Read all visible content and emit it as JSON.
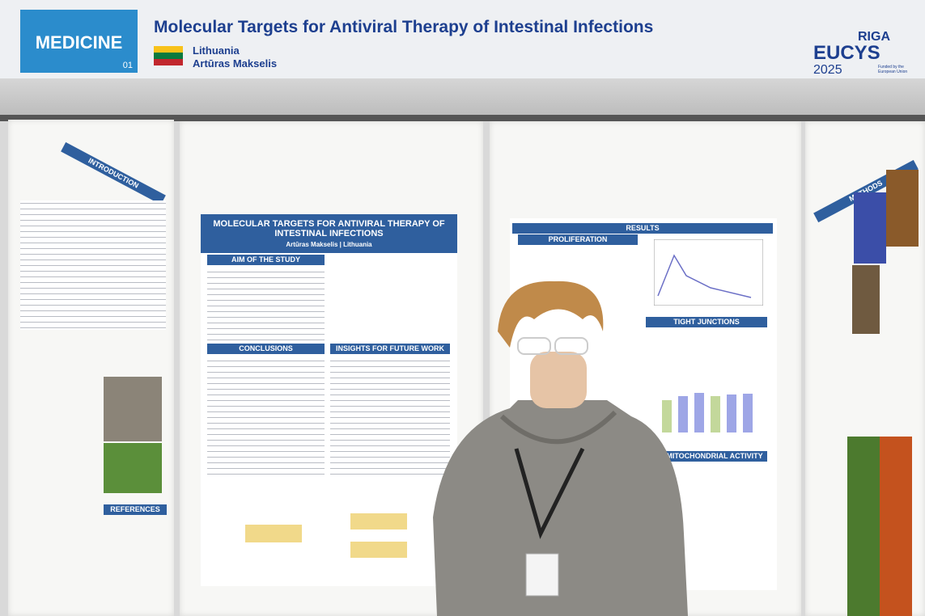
{
  "header": {
    "category": "MEDICINE",
    "number": "01",
    "title": "Molecular Targets for Antiviral Therapy of Intestinal Infections",
    "country": "Lithuania",
    "author": "Artūras Makselis"
  },
  "logo": {
    "city": "RIGA",
    "name": "EUCYS",
    "year": "2025",
    "funding": "Funded by the European Union"
  },
  "poster": {
    "title": "MOLECULAR TARGETS FOR ANTIVIRAL THERAPY OF INTESTINAL INFECTIONS",
    "byline": "Artūras Makselis | Lithuania",
    "sections": [
      "AIM OF THE STUDY",
      "CONCLUSIONS",
      "INSIGHTS FOR FUTURE WORK"
    ]
  },
  "results": {
    "title": "RESULTS",
    "sections": [
      "PROLIFERATION",
      "TIGHT JUNCTIONS",
      "MITOCHONDRIAL ACTIVITY"
    ]
  },
  "side_panels": {
    "left": [
      "INTRODUCTION",
      "REFERENCES"
    ],
    "right": [
      "METHODS"
    ]
  }
}
